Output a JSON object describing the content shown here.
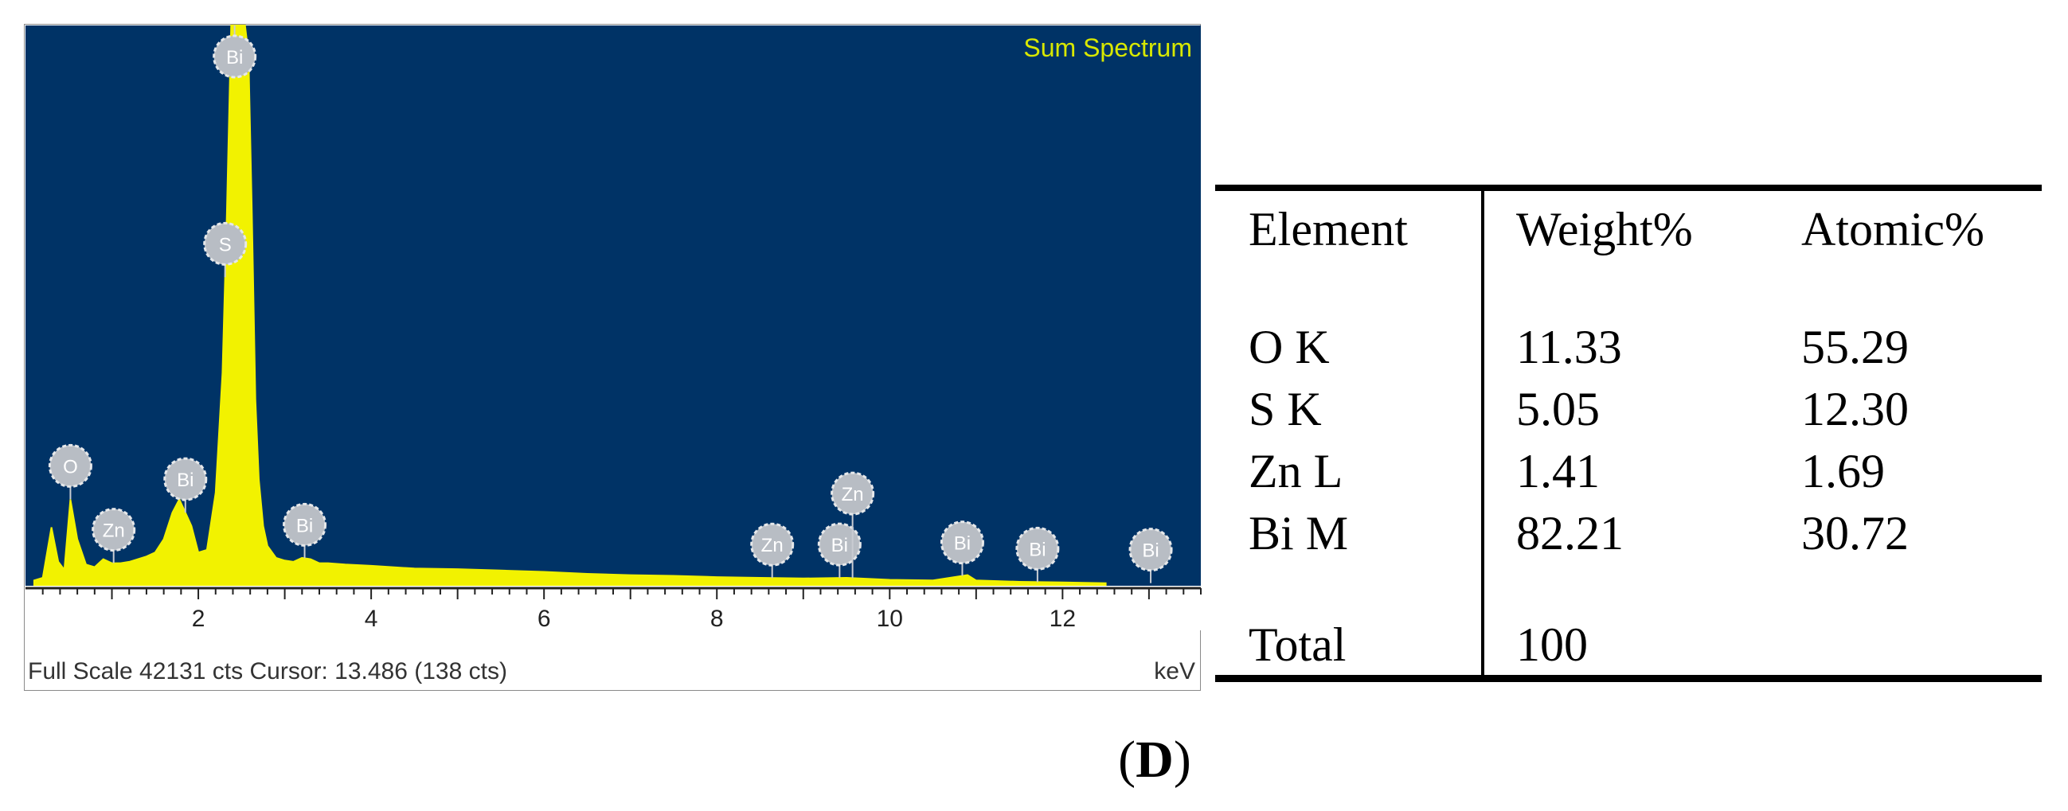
{
  "chart_data": {
    "type": "line",
    "title": "Sum Spectrum",
    "xlabel": "keV",
    "ylabel": "",
    "xlim": [
      0,
      13.6
    ],
    "x_ticks": [
      2,
      4,
      6,
      8,
      10,
      12
    ],
    "grid": false,
    "series": [
      {
        "x": [
          0.1,
          0.2,
          0.3,
          0.38,
          0.45,
          0.52,
          0.6,
          0.7,
          0.8,
          0.9,
          1.0,
          1.1,
          1.2,
          1.3,
          1.4,
          1.5,
          1.6,
          1.7,
          1.78,
          1.85,
          1.92,
          2.0,
          2.1,
          2.2,
          2.28,
          2.33,
          2.38,
          2.42,
          2.46,
          2.5,
          2.54,
          2.58,
          2.62,
          2.66,
          2.7,
          2.75,
          2.8,
          2.9,
          3.0,
          3.1,
          3.2,
          3.3,
          3.4,
          3.5,
          3.7,
          4.0,
          4.5,
          5.0,
          5.5,
          6.0,
          6.5,
          7.0,
          7.5,
          8.0,
          8.5,
          9.0,
          9.5,
          10.0,
          10.5,
          10.8,
          10.9,
          11.0,
          11.5,
          12.0,
          12.5
        ],
        "y": [
          400,
          600,
          4400,
          1800,
          1200,
          6500,
          3500,
          1600,
          1400,
          2000,
          1700,
          1700,
          1800,
          2000,
          2200,
          2500,
          3500,
          5500,
          6500,
          5500,
          4500,
          2500,
          2700,
          7000,
          16000,
          28000,
          42131,
          42131,
          42131,
          42131,
          42131,
          40000,
          28000,
          14000,
          8000,
          4500,
          3000,
          2100,
          1900,
          1800,
          2100,
          2000,
          1700,
          1700,
          1600,
          1500,
          1300,
          1250,
          1150,
          1050,
          900,
          800,
          750,
          650,
          600,
          550,
          600,
          450,
          400,
          700,
          800,
          400,
          300,
          250,
          200
        ]
      }
    ],
    "peak_labels": [
      {
        "label": "O",
        "x": 0.52
      },
      {
        "label": "Zn",
        "x": 1.02
      },
      {
        "label": "Bi",
        "x": 1.85
      },
      {
        "label": "S",
        "x": 2.31
      },
      {
        "label": "Bi",
        "x": 2.42
      },
      {
        "label": "Bi",
        "x": 3.23
      },
      {
        "label": "Zn",
        "x": 8.64
      },
      {
        "label": "Bi",
        "x": 9.42
      },
      {
        "label": "Zn",
        "x": 9.57
      },
      {
        "label": "Bi",
        "x": 10.84
      },
      {
        "label": "Bi",
        "x": 11.71
      },
      {
        "label": "Bi",
        "x": 13.02
      }
    ]
  },
  "status_bar": {
    "text": "Full Scale 42131 cts Cursor: 13.486  (138 cts)",
    "unit": "keV"
  },
  "colors": {
    "plot_background": "#003366",
    "spectrum_fill": "#f2f200",
    "title_color": "#d8e800",
    "label_badge": "#b8bdc4"
  },
  "table": {
    "headers": [
      "Element",
      "Weight%",
      "Atomic%"
    ],
    "rows": [
      [
        "O K",
        "11.33",
        "55.29"
      ],
      [
        "S K",
        "5.05",
        "12.30"
      ],
      [
        "Zn L",
        "1.41",
        "1.69"
      ],
      [
        "Bi M",
        "82.21",
        "30.72"
      ]
    ],
    "total_label": "Total",
    "total_value": "100"
  },
  "caption": {
    "open": "(",
    "letter": "D",
    "close": ")"
  }
}
